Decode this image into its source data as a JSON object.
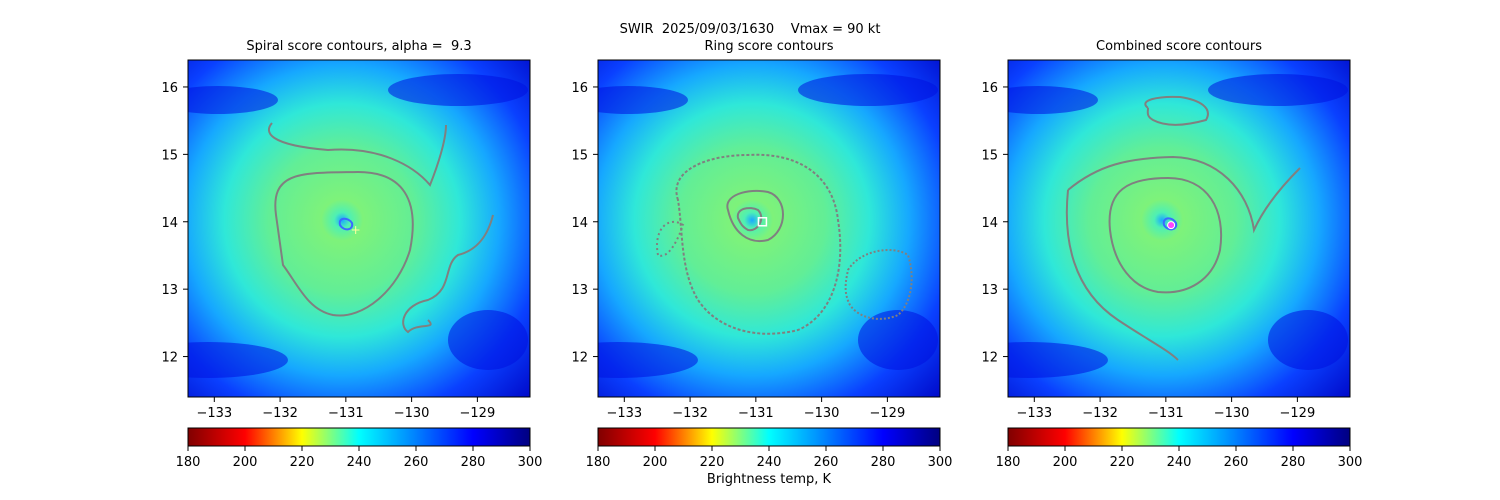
{
  "suptitle": {
    "line1": "SWIR  2025/09/03/1630    Vmax = 90 kt",
    "line2": "Ring score contours"
  },
  "colors": {
    "contour": "#808080",
    "colormap": [
      "#800000",
      "#ff0000",
      "#ffff00",
      "#00ffff",
      "#0080ff",
      "#0000ff",
      "#000080"
    ]
  },
  "chart_data": [
    {
      "type": "heatmap",
      "title": "Spiral score contours, alpha =  9.3",
      "xlim": [
        -133.4,
        -128.2
      ],
      "ylim": [
        11.4,
        16.4
      ],
      "xticks": [
        -133,
        -132,
        -131,
        -130,
        -129
      ],
      "yticks": [
        12,
        13,
        14,
        15,
        16
      ],
      "center_marker": {
        "lon": -130.85,
        "lat": 13.88,
        "label": "+"
      },
      "colorbar": {
        "range": [
          180,
          300
        ],
        "ticks": [
          180,
          200,
          220,
          240,
          260,
          280,
          300
        ],
        "label": ""
      }
    },
    {
      "type": "heatmap",
      "title": "Ring score contours",
      "xlim": [
        -133.4,
        -128.2
      ],
      "ylim": [
        11.4,
        16.4
      ],
      "xticks": [
        -133,
        -132,
        -131,
        -130,
        -129
      ],
      "yticks": [
        12,
        13,
        14,
        15,
        16
      ],
      "center_marker": {
        "lon": -130.9,
        "lat": 14.0,
        "label": "square"
      },
      "colorbar": {
        "range": [
          180,
          300
        ],
        "ticks": [
          180,
          200,
          220,
          240,
          260,
          280,
          300
        ],
        "label": "Brightness temp, K"
      }
    },
    {
      "type": "heatmap",
      "title": "Combined score contours",
      "xlim": [
        -133.4,
        -128.2
      ],
      "ylim": [
        11.4,
        16.4
      ],
      "xticks": [
        -133,
        -132,
        -131,
        -130,
        -129
      ],
      "yticks": [
        12,
        13,
        14,
        15,
        16
      ],
      "center_marker": {
        "lon": -130.92,
        "lat": 13.95,
        "label": "circle"
      },
      "colorbar": {
        "range": [
          180,
          300
        ],
        "ticks": [
          180,
          200,
          220,
          240,
          260,
          280,
          300
        ],
        "label": ""
      }
    }
  ]
}
